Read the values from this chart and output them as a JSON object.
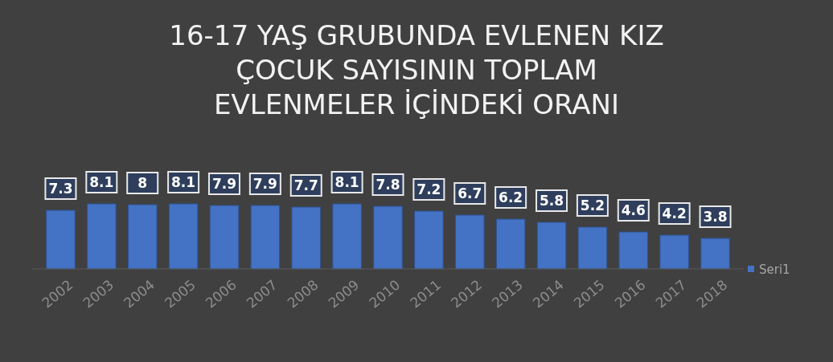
{
  "chart_data": {
    "type": "bar",
    "title": "16-17 YAŞ GRUBUNDA EVLENEN KIZ\nÇOCUK SAYISININ TOPLAM\nEVLENMELER İÇİNDEKİ ORANI",
    "categories": [
      "2002",
      "2003",
      "2004",
      "2005",
      "2006",
      "2007",
      "2008",
      "2009",
      "2010",
      "2011",
      "2012",
      "2013",
      "2014",
      "2015",
      "2016",
      "2017",
      "2018"
    ],
    "series": [
      {
        "name": "Seri1",
        "color": "#4472c4",
        "values": [
          7.3,
          8.1,
          8,
          8.1,
          7.9,
          7.9,
          7.7,
          8.1,
          7.8,
          7.2,
          6.7,
          6.2,
          5.8,
          5.2,
          4.6,
          4.2,
          3.8
        ]
      }
    ],
    "data_labels": true,
    "legend": "right"
  }
}
